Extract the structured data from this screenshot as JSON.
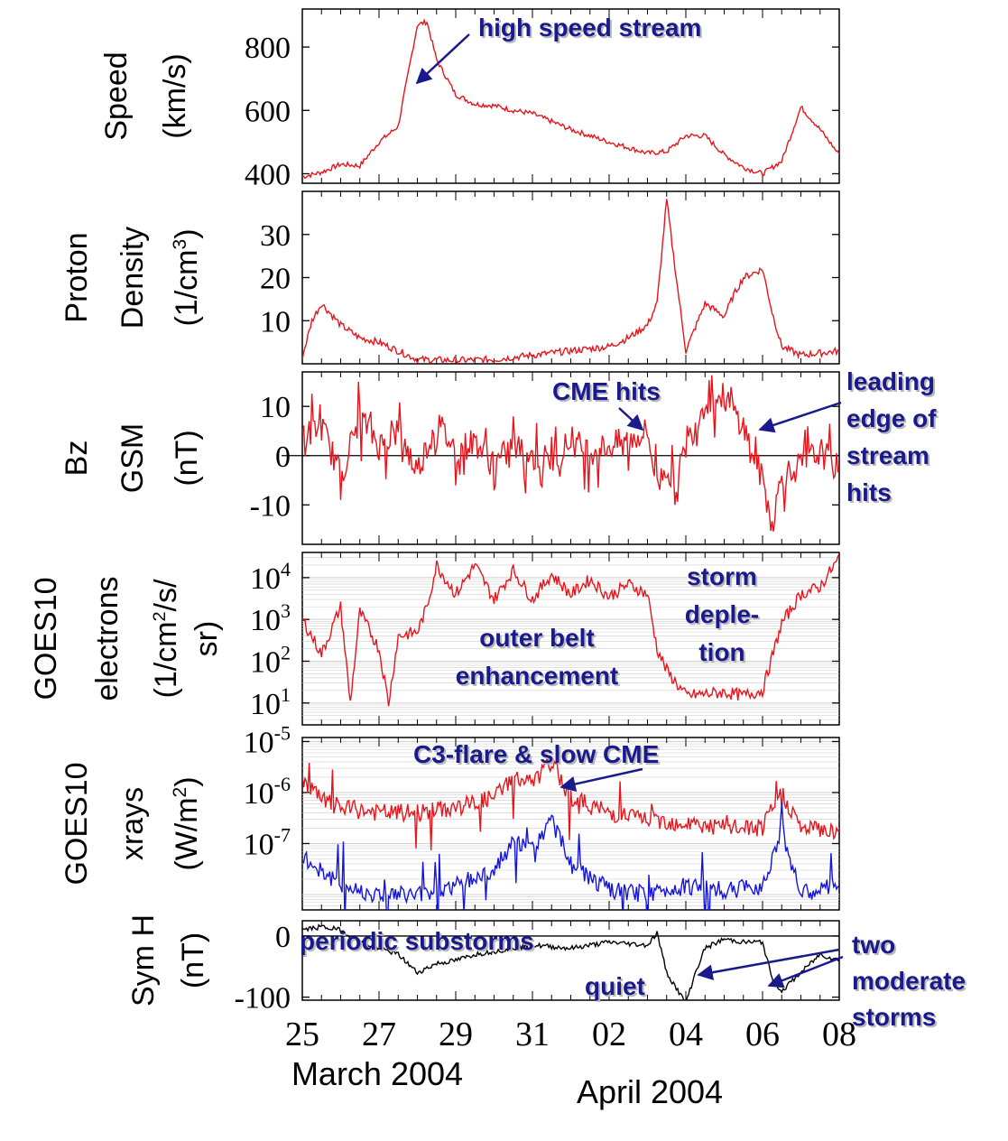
{
  "chart_data": [
    {
      "type": "line",
      "ylabel": [
        "Speed",
        "(km/s)"
      ],
      "ylim": [
        370,
        920
      ],
      "yticks": [
        400,
        600,
        800
      ],
      "yscale": "linear",
      "series": [
        {
          "color": "#e8141c",
          "x": [
            "2004-03-25",
            "2004-03-25T12",
            "2004-03-26",
            "2004-03-26T12",
            "2004-03-27",
            "2004-03-27T12",
            "2004-03-28",
            "2004-03-28T06",
            "2004-03-28T12",
            "2004-03-29",
            "2004-03-29T12",
            "2004-03-30",
            "2004-03-30T12",
            "2004-03-31",
            "2004-04-01",
            "2004-04-02",
            "2004-04-03",
            "2004-04-03T12",
            "2004-04-04",
            "2004-04-04T12",
            "2004-04-05",
            "2004-04-05T12",
            "2004-04-06",
            "2004-04-06T12",
            "2004-04-07",
            "2004-04-07T12",
            "2004-04-08"
          ],
          "values": [
            390,
            405,
            430,
            425,
            500,
            550,
            870,
            880,
            760,
            650,
            620,
            615,
            600,
            590,
            540,
            500,
            465,
            470,
            520,
            520,
            460,
            420,
            400,
            440,
            610,
            540,
            460
          ]
        }
      ]
    },
    {
      "type": "line",
      "ylabel": [
        "Proton",
        "Density",
        "(1/cm³)"
      ],
      "ylim": [
        0,
        40
      ],
      "yticks": [
        10,
        20,
        30
      ],
      "yscale": "linear",
      "series": [
        {
          "color": "#e8141c",
          "x": [
            "2004-03-25",
            "2004-03-25T06",
            "2004-03-25T12",
            "2004-03-26",
            "2004-03-26T12",
            "2004-03-27",
            "2004-03-27T12",
            "2004-03-28",
            "2004-03-29",
            "2004-03-30",
            "2004-03-31",
            "2004-04-01",
            "2004-04-02",
            "2004-04-02T12",
            "2004-04-03",
            "2004-04-03T06",
            "2004-04-03T12",
            "2004-04-03T18",
            "2004-04-04",
            "2004-04-04T12",
            "2004-04-05",
            "2004-04-05T06",
            "2004-04-05T12",
            "2004-04-06",
            "2004-04-06T06",
            "2004-04-06T12",
            "2004-04-07",
            "2004-04-08"
          ],
          "values": [
            1.5,
            10,
            14,
            9,
            6,
            5,
            3,
            1,
            0.8,
            1,
            2,
            3,
            4,
            6,
            9,
            14,
            38,
            20,
            3,
            14,
            11,
            16,
            20,
            22,
            12,
            4,
            2,
            3
          ]
        }
      ]
    },
    {
      "type": "line",
      "ylabel": [
        "Bz",
        "GSM",
        "(nT)"
      ],
      "ylim": [
        -18,
        17
      ],
      "yticks": [
        -10,
        0,
        10
      ],
      "zero_line": true,
      "yscale": "linear",
      "series": [
        {
          "color": "#e8141c",
          "x": [
            "2004-03-25",
            "2004-03-25T12",
            "2004-03-26",
            "2004-03-26T12",
            "2004-03-27",
            "2004-03-27T12",
            "2004-03-28",
            "2004-03-28T12",
            "2004-03-29",
            "2004-03-29T12",
            "2004-03-30",
            "2004-03-30T12",
            "2004-03-31",
            "2004-03-31T12",
            "2004-04-01",
            "2004-04-01T12",
            "2004-04-02",
            "2004-04-02T12",
            "2004-04-03",
            "2004-04-03T06",
            "2004-04-03T12",
            "2004-04-03T18",
            "2004-04-04",
            "2004-04-04T12",
            "2004-04-05",
            "2004-04-05T12",
            "2004-04-06",
            "2004-04-06T06",
            "2004-04-06T12",
            "2004-04-07",
            "2004-04-07T12",
            "2004-04-08"
          ],
          "values": [
            4,
            6,
            -4,
            8,
            2,
            5,
            -3,
            7,
            1,
            3,
            -2,
            2,
            0,
            -1,
            3,
            1,
            2,
            3,
            5,
            -6,
            -2,
            -8,
            2,
            11,
            12,
            6,
            -5,
            -14,
            -4,
            -2,
            1,
            -3
          ]
        }
      ]
    },
    {
      "type": "line",
      "ylabel": [
        "GOES10",
        "electrons",
        "(1/cm²/s/",
        "sr)"
      ],
      "ylim": [
        3,
        40000
      ],
      "yticks": [
        10,
        100,
        1000,
        10000
      ],
      "ytick_labels": [
        "10",
        "10",
        "10",
        "10"
      ],
      "ytick_exponents": [
        "1",
        "2",
        "3",
        "4"
      ],
      "yscale": "log",
      "series": [
        {
          "color": "#e8141c",
          "x": [
            "2004-03-25",
            "2004-03-25T12",
            "2004-03-26",
            "2004-03-26T06",
            "2004-03-26T12",
            "2004-03-27",
            "2004-03-27T06",
            "2004-03-27T12",
            "2004-03-28",
            "2004-03-28T06",
            "2004-03-28T12",
            "2004-03-29",
            "2004-03-29T12",
            "2004-03-30",
            "2004-03-30T12",
            "2004-03-31",
            "2004-03-31T12",
            "2004-04-01",
            "2004-04-01T12",
            "2004-04-02",
            "2004-04-02T12",
            "2004-04-03",
            "2004-04-03T06",
            "2004-04-03T12",
            "2004-04-04",
            "2004-04-05",
            "2004-04-05T12",
            "2004-04-06",
            "2004-04-06T12",
            "2004-04-07",
            "2004-04-07T12",
            "2004-04-08"
          ],
          "values": [
            1000,
            150,
            2000,
            10,
            1500,
            200,
            10,
            400,
            500,
            2000,
            20000,
            4000,
            20000,
            3000,
            15000,
            3000,
            12000,
            4000,
            9000,
            3500,
            7000,
            4000,
            200,
            60,
            15,
            18,
            15,
            20,
            800,
            4000,
            6000,
            30000
          ]
        }
      ]
    },
    {
      "type": "line",
      "ylabel": [
        "GOES10",
        "xrays",
        "(W/m²)"
      ],
      "ylim": [
        5e-09,
        1.2e-05
      ],
      "yticks": [
        1e-07,
        1e-06,
        1e-05
      ],
      "ytick_labels": [
        "10",
        "10",
        "10"
      ],
      "ytick_exponents": [
        "-7",
        "-6",
        "-5"
      ],
      "yscale": "log",
      "series": [
        {
          "color": "#e8141c",
          "x": [
            "2004-03-25",
            "2004-03-25T12",
            "2004-03-26",
            "2004-03-27",
            "2004-03-28",
            "2004-03-29",
            "2004-03-30",
            "2004-03-30T12",
            "2004-03-31",
            "2004-03-31T12",
            "2004-04-01",
            "2004-04-02",
            "2004-04-03",
            "2004-04-04",
            "2004-04-05",
            "2004-04-06",
            "2004-04-06T12",
            "2004-04-07",
            "2004-04-08"
          ],
          "values": [
            2e-06,
            7e-07,
            5e-07,
            4e-07,
            4e-07,
            5e-07,
            8e-07,
            2e-06,
            1.5e-06,
            4e-06,
            8e-07,
            4e-07,
            3e-07,
            2.5e-07,
            2e-07,
            2e-07,
            1e-06,
            2e-07,
            1.8e-07
          ]
        },
        {
          "color": "#1414e0",
          "x": [
            "2004-03-25",
            "2004-03-25T12",
            "2004-03-26",
            "2004-03-27",
            "2004-03-28",
            "2004-03-29",
            "2004-03-30",
            "2004-03-30T12",
            "2004-03-31",
            "2004-03-31T12",
            "2004-04-01",
            "2004-04-02",
            "2004-04-03",
            "2004-04-04",
            "2004-04-05",
            "2004-04-06",
            "2004-04-06T12",
            "2004-04-07",
            "2004-04-08"
          ],
          "values": [
            5e-08,
            3e-08,
            1.5e-08,
            1e-08,
            1e-08,
            1.5e-08,
            3e-08,
            1e-07,
            8e-08,
            3e-07,
            4e-08,
            1.2e-08,
            1e-08,
            1.5e-08,
            1.2e-08,
            1.5e-08,
            2e-07,
            1e-08,
            1.5e-08
          ]
        }
      ]
    },
    {
      "type": "line",
      "ylabel": [
        "Sym H",
        "(nT)"
      ],
      "ylim": [
        -105,
        25
      ],
      "yticks": [
        -100,
        0
      ],
      "zero_line": true,
      "yscale": "linear",
      "series": [
        {
          "color": "#000000",
          "x": [
            "2004-03-25",
            "2004-03-25T12",
            "2004-03-26",
            "2004-03-26T12",
            "2004-03-27",
            "2004-03-27T12",
            "2004-03-28",
            "2004-03-28T12",
            "2004-03-29",
            "2004-03-29T12",
            "2004-03-30",
            "2004-03-31",
            "2004-04-01",
            "2004-04-02",
            "2004-04-03",
            "2004-04-03T06",
            "2004-04-03T12",
            "2004-04-04",
            "2004-04-04T06",
            "2004-04-04T12",
            "2004-04-05",
            "2004-04-05T12",
            "2004-04-06",
            "2004-04-06T06",
            "2004-04-06T12",
            "2004-04-07",
            "2004-04-07T12",
            "2004-04-08"
          ],
          "values": [
            10,
            15,
            10,
            -10,
            -20,
            -30,
            -60,
            -45,
            -40,
            -30,
            -25,
            -15,
            -20,
            -10,
            -15,
            5,
            -60,
            -110,
            -60,
            -20,
            -5,
            -10,
            -10,
            -70,
            -90,
            -60,
            -30,
            -40
          ]
        }
      ]
    }
  ],
  "xaxis": {
    "ticks": [
      "25",
      "27",
      "29",
      "31",
      "02",
      "04",
      "06",
      "08"
    ],
    "months": [
      "March 2004",
      "April 2004"
    ]
  },
  "annotations": {
    "high_speed_stream": "high speed stream",
    "cme_hits": "CME hits",
    "leading_edge": [
      "leading",
      "edge of",
      "stream",
      "hits"
    ],
    "storm_depletion": [
      "storm",
      "deple-",
      "tion"
    ],
    "outer_belt": [
      "outer belt",
      "enhancement"
    ],
    "flare": "C3-flare & slow CME",
    "periodic_substorms": "periodic substorms",
    "quiet": "quiet",
    "two_storms": [
      "two",
      "moderate",
      "storms"
    ]
  },
  "colors": {
    "annotation": "#1a1a8c",
    "axis": "#000000"
  }
}
